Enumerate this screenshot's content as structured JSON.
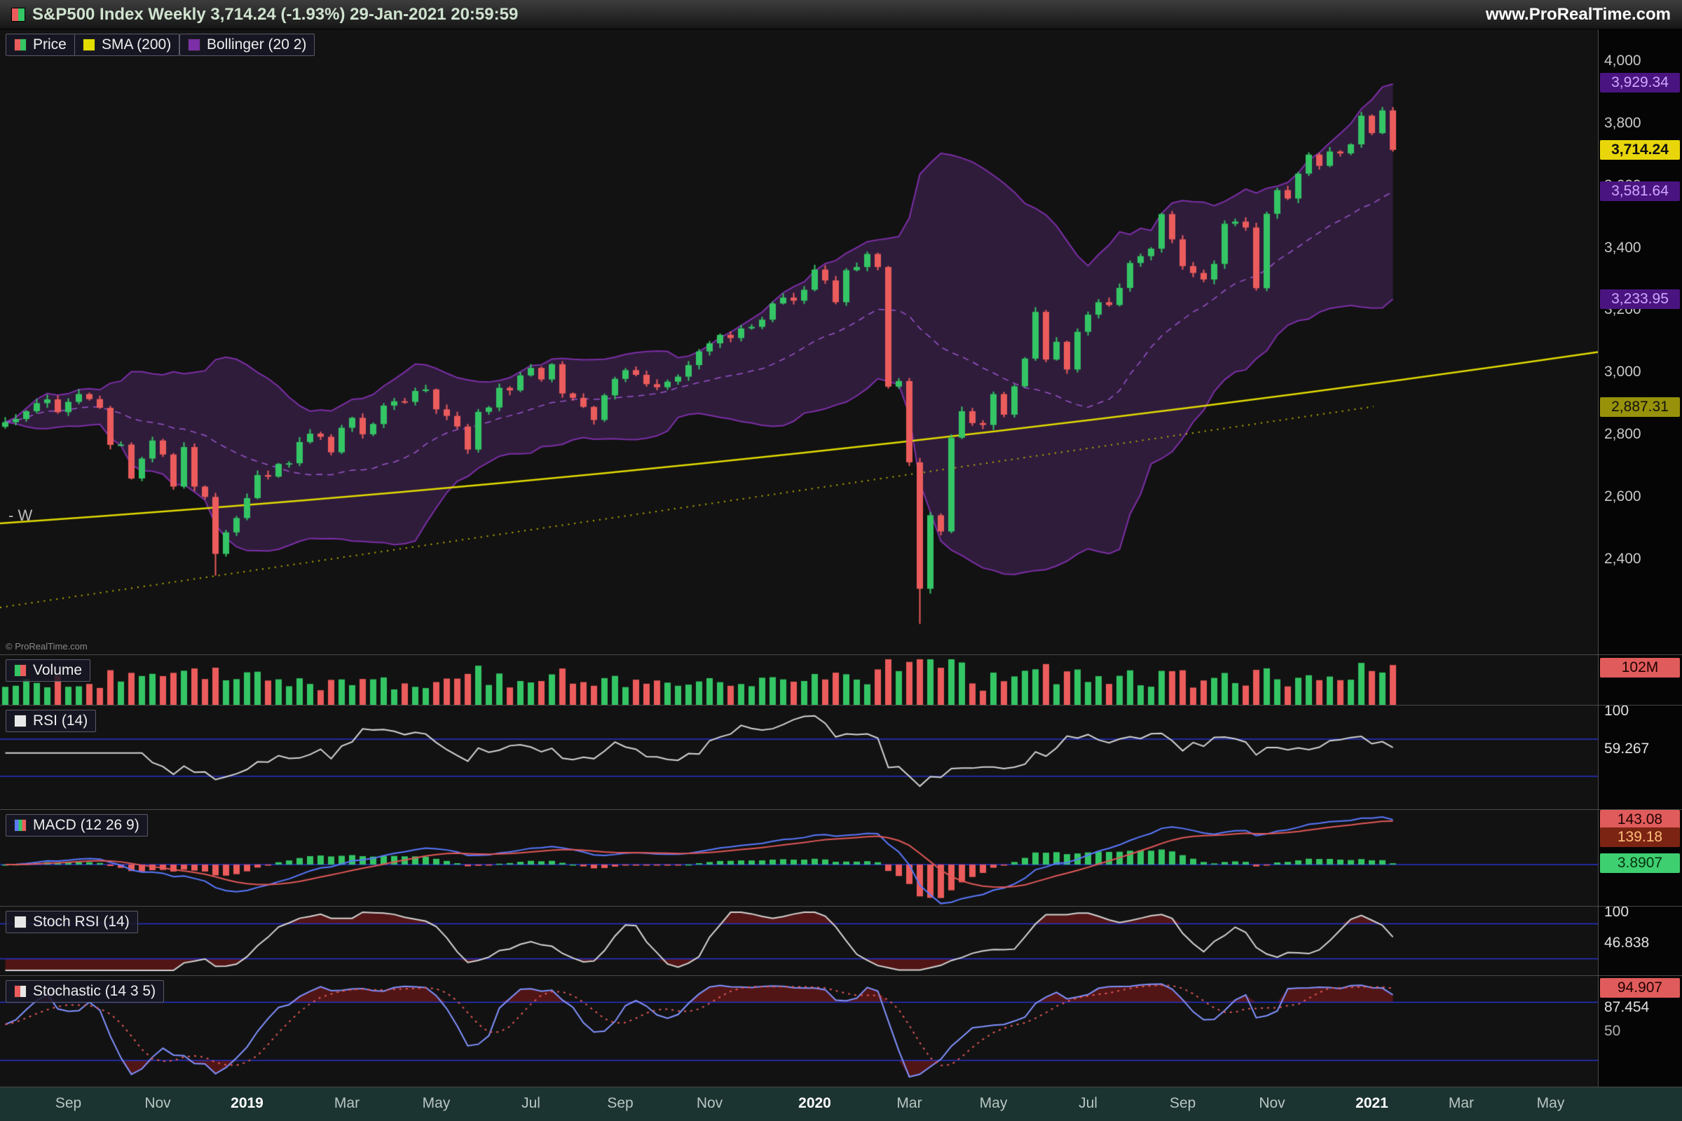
{
  "header": {
    "title": "S&P500 Index Weekly 3,714.24 (-1.93%) 29-Jan-2021 20:59:59",
    "website": "www.ProRealTime.com"
  },
  "timeframe_label": "- W",
  "copyright": "© ProRealTime.com",
  "legend": {
    "price": {
      "label": "Price"
    },
    "sma": {
      "label": "SMA (200)"
    },
    "bollinger": {
      "label": "Bollinger (20 2)"
    }
  },
  "panels": {
    "volume": {
      "label": "Volume",
      "value": "102M"
    },
    "rsi": {
      "label": "RSI (14)",
      "max": "100",
      "value": "59.267"
    },
    "macd": {
      "label": "MACD (12 26 9)",
      "line": "143.08",
      "signal": "139.18",
      "hist": "3.8907"
    },
    "stoch_rsi": {
      "label": "Stoch RSI (14)",
      "max": "100",
      "value": "46.838"
    },
    "stochastic": {
      "label": "Stochastic (14 3 5)",
      "d": "94.907",
      "k": "87.454",
      "mid": "50"
    }
  },
  "price_axis": {
    "ticks": [
      {
        "label": "4,000",
        "value": 4000
      },
      {
        "label": "3,800",
        "value": 3800
      },
      {
        "label": "3,600",
        "value": 3600
      },
      {
        "label": "3,400",
        "value": 3400
      },
      {
        "label": "3,200",
        "value": 3200
      },
      {
        "label": "3,000",
        "value": 3000
      },
      {
        "label": "2,800",
        "value": 2800
      },
      {
        "label": "2,600",
        "value": 2600
      },
      {
        "label": "2,400",
        "value": 2400
      }
    ],
    "badges": [
      {
        "label": "3,929.34",
        "value": 3929.34,
        "type": "purple"
      },
      {
        "label": "3,714.24",
        "value": 3714.24,
        "type": "yellow"
      },
      {
        "label": "3,581.64",
        "value": 3581.64,
        "type": "purple"
      },
      {
        "label": "3,233.95",
        "value": 3233.95,
        "type": "purple"
      },
      {
        "label": "2,887.31",
        "value": 2887.31,
        "type": "olive"
      }
    ]
  },
  "time_axis": {
    "labels": [
      {
        "text": "Sep",
        "week": 6,
        "bold": false
      },
      {
        "text": "Nov",
        "week": 14.5,
        "bold": false
      },
      {
        "text": "2019",
        "week": 23,
        "bold": true
      },
      {
        "text": "Mar",
        "week": 32.5,
        "bold": false
      },
      {
        "text": "May",
        "week": 41,
        "bold": false
      },
      {
        "text": "Jul",
        "week": 50,
        "bold": false
      },
      {
        "text": "Sep",
        "week": 58.5,
        "bold": false
      },
      {
        "text": "Nov",
        "week": 67,
        "bold": false
      },
      {
        "text": "2020",
        "week": 77,
        "bold": true
      },
      {
        "text": "Mar",
        "week": 86,
        "bold": false
      },
      {
        "text": "May",
        "week": 94,
        "bold": false
      },
      {
        "text": "Jul",
        "week": 103,
        "bold": false
      },
      {
        "text": "Sep",
        "week": 112,
        "bold": false
      },
      {
        "text": "Nov",
        "week": 120.5,
        "bold": false
      },
      {
        "text": "2021",
        "week": 130,
        "bold": true
      },
      {
        "text": "Mar",
        "week": 138.5,
        "bold": false
      },
      {
        "text": "May",
        "week": 147,
        "bold": false
      }
    ]
  },
  "colors": {
    "up": "#34c565",
    "down": "#ec5c5c",
    "sma": "#e3dc00",
    "sma_dotted": "#b9ae00",
    "bollinger": "#7d2fa8",
    "bollinger_mid": "#9a55cc",
    "bollinger_fill": "rgba(84,42,110,0.45)",
    "macd_line": "#5a79ff",
    "signal": "#e25858",
    "stoch_k": "#8193ff",
    "oscillator_line": "#d5d5d5",
    "guide_blue": "#2a35cf",
    "overbought_fill": "rgba(125,24,24,0.6)"
  },
  "chart_data": {
    "type": "candlestick",
    "symbol": "S&P500 Index",
    "timeframe": "Weekly",
    "last_price": 3714.24,
    "change_pct": "-1.93%",
    "timestamp": "29-Jan-2021 20:59:59",
    "price_axis_visible_range": [
      2092,
      4101
    ],
    "closes": [
      2840,
      2850,
      2875,
      2901,
      2913,
      2872,
      2905,
      2930,
      2914,
      2886,
      2767,
      2768,
      2659,
      2723,
      2781,
      2736,
      2633,
      2760,
      2633,
      2600,
      2417,
      2486,
      2532,
      2596,
      2670,
      2665,
      2706,
      2708,
      2776,
      2803,
      2793,
      2743,
      2822,
      2854,
      2801,
      2834,
      2893,
      2907,
      2905,
      2940,
      2945,
      2881,
      2860,
      2826,
      2752,
      2873,
      2887,
      2950,
      2942,
      2990,
      3014,
      2977,
      3026,
      2932,
      2918,
      2889,
      2847,
      2926,
      2979,
      3007,
      2992,
      2962,
      2952,
      2970,
      2986,
      3023,
      3067,
      3093,
      3120,
      3110,
      3141,
      3146,
      3169,
      3221,
      3240,
      3230,
      3265,
      3330,
      3295,
      3225,
      3328,
      3338,
      3380,
      3338,
      2954,
      2972,
      2711,
      2305,
      2541,
      2489,
      2790,
      2875,
      2837,
      2831,
      2930,
      2864,
      2955,
      3044,
      3194,
      3041,
      3098,
      3009,
      3130,
      3185,
      3225,
      3216,
      3271,
      3351,
      3373,
      3397,
      3508,
      3427,
      3341,
      3319,
      3298,
      3348,
      3477,
      3484,
      3465,
      3270,
      3509,
      3585,
      3558,
      3638,
      3699,
      3663,
      3709,
      3703,
      3732,
      3824,
      3768,
      3841,
      3714.24
    ],
    "low_overrides": {
      "20": 2347,
      "87": 2192
    },
    "indicators": [
      "SMA(200)",
      "Bollinger(20,2)",
      "Volume",
      "RSI(14)",
      "MACD(12,26,9)",
      "StochRSI(14)",
      "Stochastic(14,3,5)"
    ],
    "indicator_values": {
      "bollinger_upper": 3929.34,
      "price_last": 3714.24,
      "bollinger_mid": 3581.64,
      "bollinger_lower": 3233.95,
      "sma200": 2887.31,
      "volume_last": "102M",
      "rsi": 59.267,
      "macd": 143.08,
      "macd_signal": 139.18,
      "macd_hist": 3.8907,
      "stoch_rsi": 46.838,
      "stochastic_d": 94.907,
      "stochastic_k": 87.454
    }
  }
}
